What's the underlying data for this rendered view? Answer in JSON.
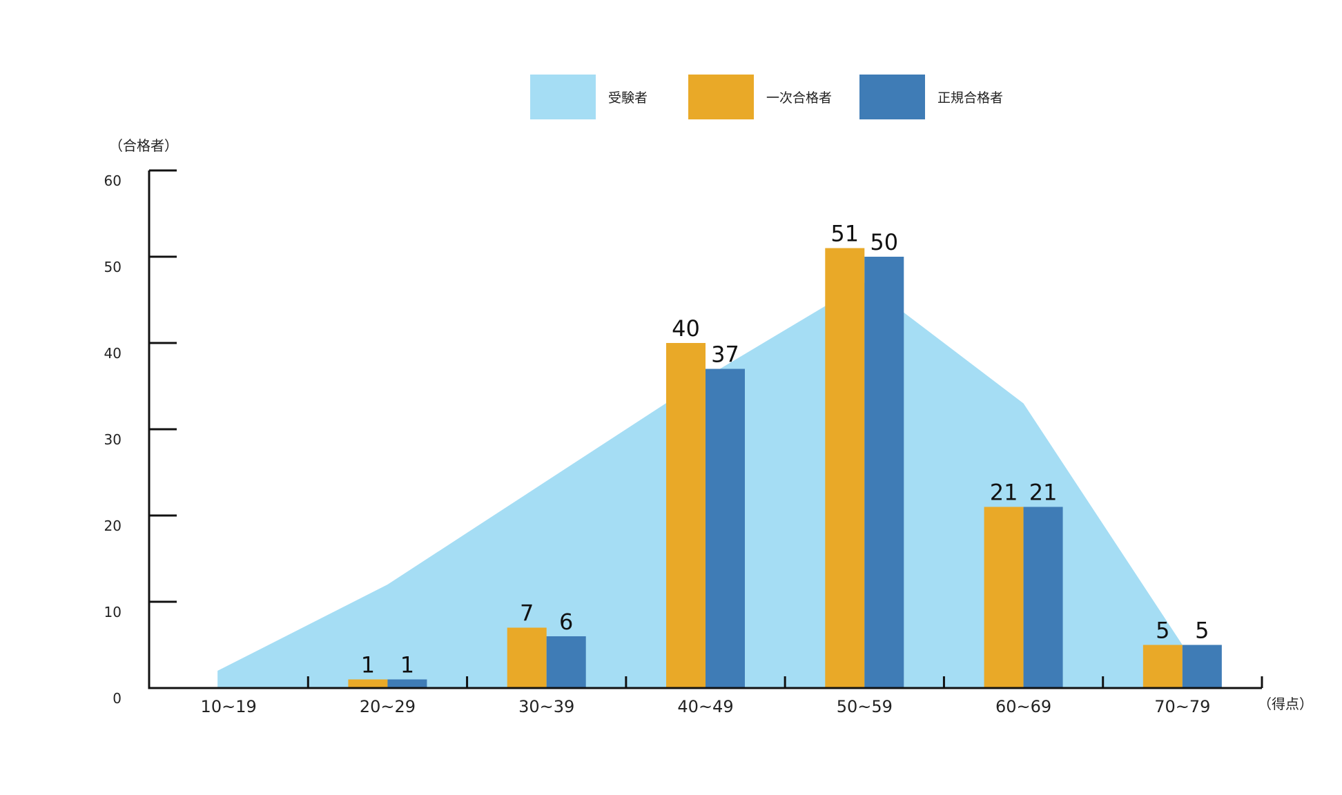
{
  "chart_data": {
    "type": "bar",
    "categories": [
      "10~19",
      "20~29",
      "30~39",
      "40~49",
      "50~59",
      "60~69",
      "70~79"
    ],
    "area_series": {
      "name": "受験者",
      "values": [
        2,
        12,
        24,
        36,
        47,
        33,
        5
      ],
      "color": "#a5ddf4"
    },
    "series": [
      {
        "name": "一次合格者",
        "values": [
          0,
          1,
          7,
          40,
          51,
          21,
          5
        ],
        "color": "#e9a928",
        "labels": [
          "",
          "1",
          "7",
          "40",
          "51",
          "21",
          "5"
        ]
      },
      {
        "name": "正規合格者",
        "values": [
          0,
          1,
          6,
          37,
          50,
          21,
          5
        ],
        "color": "#3f7cb6",
        "labels": [
          "",
          "1",
          "6",
          "37",
          "50",
          "21",
          "5"
        ]
      }
    ],
    "ylabel": "（合格者）",
    "xlabel": "（得点）",
    "ylim": [
      0,
      60
    ],
    "yticks": [
      "0",
      "10",
      "20",
      "30",
      "40",
      "50",
      "60"
    ],
    "grid": false,
    "legend_position": "top-center"
  }
}
